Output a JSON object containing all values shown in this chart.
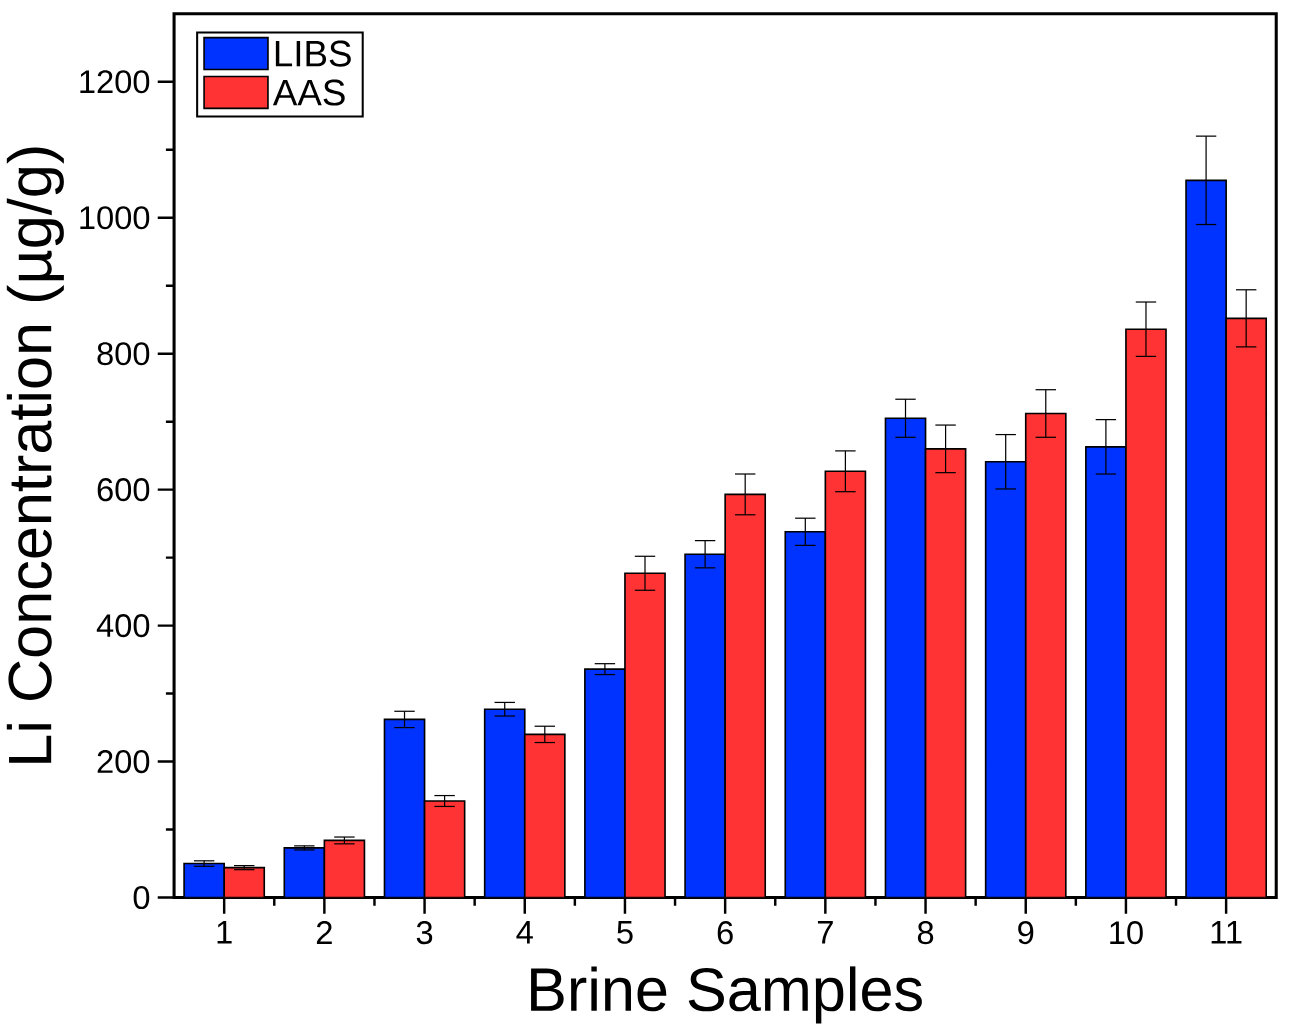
{
  "chart_data": {
    "type": "bar",
    "xlabel": "Brine Samples",
    "ylabel": "Li Concentration (µg/g)",
    "categories": [
      "1",
      "2",
      "3",
      "4",
      "5",
      "6",
      "7",
      "8",
      "9",
      "10",
      "11"
    ],
    "series": [
      {
        "name": "LIBS",
        "color": "#0033ff",
        "values": [
          50,
          73,
          262,
          277,
          336,
          505,
          538,
          705,
          641,
          663,
          1055
        ],
        "errors": [
          4,
          3,
          12,
          10,
          8,
          20,
          20,
          28,
          40,
          40,
          65
        ]
      },
      {
        "name": "AAS",
        "color": "#ff3333",
        "values": [
          44,
          84,
          142,
          240,
          477,
          593,
          627,
          660,
          712,
          836,
          852
        ],
        "errors": [
          3,
          5,
          8,
          12,
          25,
          30,
          30,
          35,
          35,
          40,
          42
        ]
      }
    ],
    "ylim": [
      0,
      1300
    ],
    "yticks": [
      0,
      200,
      400,
      600,
      800,
      1000,
      1200
    ],
    "legend": "top left",
    "grid": false
  }
}
